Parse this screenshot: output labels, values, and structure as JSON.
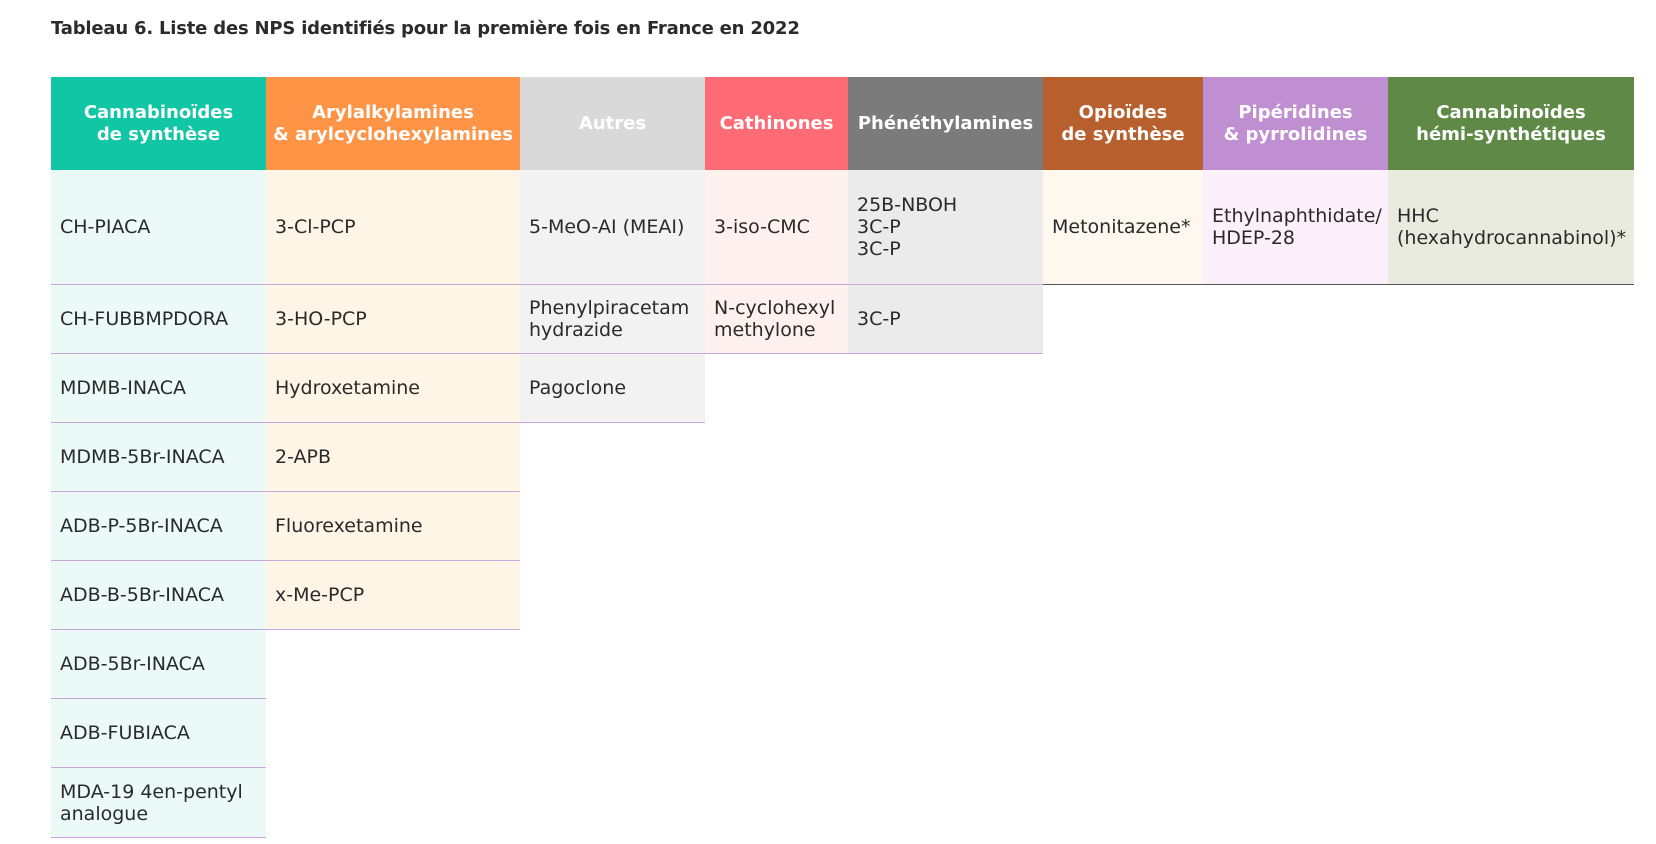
{
  "caption": "Tableau 6. Liste des NPS identifiés pour la première fois en France en 2022",
  "columns": [
    {
      "header": "Cannabinoïdes\nde synthèse",
      "colors": {
        "header": "#10c6a4",
        "cell": "#ebfaf6"
      },
      "items": [
        "CH-PIACA",
        "CH-FUBBMPDORA",
        "MDMB-INACA",
        "MDMB-5Br-INACA",
        "ADB-P-5Br-INACA",
        "ADB-B-5Br-INACA",
        "ADB-5Br-INACA",
        "ADB-FUBIACA",
        "MDA-19 4en-pentyl\nanalogue"
      ]
    },
    {
      "header": "Arylalkylamines\n& arylcyclohexylamines",
      "colors": {
        "header": "#ff9447",
        "cell": "#fff5e6"
      },
      "items": [
        "3-Cl-PCP",
        "3-HO-PCP",
        "Hydroxetamine",
        "2-APB",
        "Fluorexetamine",
        "x-Me-PCP"
      ]
    },
    {
      "header": "Autres",
      "colors": {
        "header": "#d9d9d9",
        "cell": "#f2f2f2"
      },
      "items": [
        "5-MeO-AI (MEAI)",
        "Phenylpiracetam\nhydrazide",
        "Pagoclone"
      ]
    },
    {
      "header": "Cathinones",
      "colors": {
        "header": "#ff6b75",
        "cell": "#fff1ee"
      },
      "items": [
        "3-iso-CMC",
        "N-cyclohexyl\nmethylone"
      ]
    },
    {
      "header": "Phénéthylamines",
      "colors": {
        "header": "#7b7b7b",
        "cell": "#ebebeb"
      },
      "items": [
        "25B-NBOH\n3C-P\n3C-P",
        "3C-P"
      ]
    },
    {
      "header": "Opioïdes\nde synthèse",
      "colors": {
        "header": "#b8602d",
        "cell": "#fff8ef"
      },
      "items": [
        "Metonitazene*"
      ]
    },
    {
      "header": "Pipéridines\n& pyrrolidines",
      "colors": {
        "header": "#c08fd1",
        "cell": "#fcf0fb"
      },
      "items": [
        "Ethylnaphthidate/\nHDEP-28"
      ]
    },
    {
      "header": "Cannabinoïdes\nhémi-synthétiques",
      "colors": {
        "header": "#5f8946",
        "cell": "#e9ebdf"
      },
      "items": [
        "HHC\n(hexahydrocannabinol)*"
      ]
    }
  ]
}
